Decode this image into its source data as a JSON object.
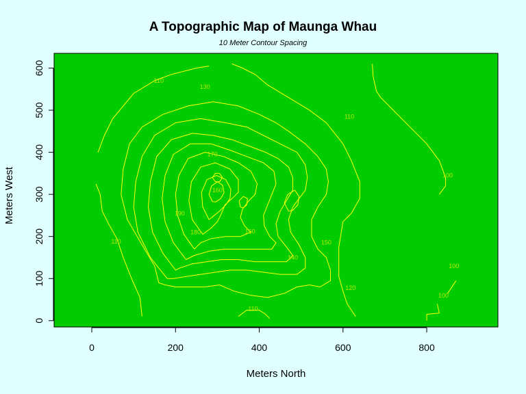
{
  "chart_data": {
    "type": "contour",
    "title": "A Topographic Map of Maunga Whau",
    "subtitle": "10 Meter Contour Spacing",
    "xlabel": "Meters North",
    "ylabel": "Meters West",
    "xlim": [
      -90,
      970
    ],
    "ylim": [
      -15,
      635
    ],
    "x_ticks": [
      0,
      200,
      400,
      600,
      800
    ],
    "y_ticks": [
      0,
      100,
      200,
      300,
      400,
      500,
      600
    ],
    "grid": false,
    "colors": {
      "background": "#e0ffff",
      "plot_fill": "#00cc00",
      "contour_line": "#ffff00",
      "label_color": "#b8e800"
    },
    "contours": [
      {
        "level": 100,
        "points": [
          [
            670,
            610
          ],
          [
            672,
            580
          ],
          [
            680,
            545
          ],
          [
            690,
            530
          ],
          [
            720,
            500
          ],
          [
            760,
            460
          ],
          [
            800,
            420
          ],
          [
            830,
            380
          ],
          [
            845,
            340
          ],
          [
            845,
            320
          ],
          [
            830,
            300
          ]
        ]
      },
      {
        "level": 100,
        "points": [
          [
            850,
            65
          ],
          [
            870,
            95
          ]
        ]
      },
      {
        "level": 100,
        "points": [
          [
            800,
            0
          ],
          [
            800,
            15
          ],
          [
            830,
            18
          ],
          [
            825,
            40
          ]
        ]
      },
      {
        "level": 110,
        "points": [
          [
            15,
            400
          ],
          [
            30,
            440
          ],
          [
            50,
            480
          ],
          [
            100,
            540
          ],
          [
            150,
            570
          ],
          [
            190,
            585
          ],
          [
            250,
            600
          ],
          [
            280,
            605
          ]
        ]
      },
      {
        "level": 110,
        "points": [
          [
            10,
            325
          ],
          [
            20,
            300
          ],
          [
            25,
            260
          ],
          [
            40,
            230
          ],
          [
            60,
            195
          ],
          [
            75,
            150
          ],
          [
            95,
            100
          ],
          [
            115,
            55
          ],
          [
            120,
            10
          ]
        ]
      },
      {
        "level": 110,
        "points": [
          [
            335,
            610
          ],
          [
            360,
            600
          ],
          [
            390,
            585
          ],
          [
            420,
            560
          ],
          [
            470,
            530
          ],
          [
            520,
            500
          ],
          [
            560,
            470
          ],
          [
            600,
            420
          ],
          [
            620,
            380
          ],
          [
            640,
            330
          ],
          [
            640,
            290
          ],
          [
            620,
            255
          ],
          [
            600,
            235
          ],
          [
            590,
            175
          ],
          [
            590,
            105
          ],
          [
            600,
            70
          ],
          [
            610,
            40
          ],
          [
            630,
            10
          ]
        ]
      },
      {
        "level": 110,
        "points": [
          [
            350,
            10
          ],
          [
            370,
            25
          ],
          [
            400,
            25
          ],
          [
            415,
            15
          ],
          [
            425,
            5
          ]
        ]
      },
      {
        "level": 120,
        "points": [
          [
            160,
            90
          ],
          [
            150,
            130
          ],
          [
            120,
            180
          ],
          [
            85,
            240
          ],
          [
            70,
            300
          ],
          [
            75,
            360
          ],
          [
            90,
            420
          ],
          [
            120,
            460
          ],
          [
            170,
            490
          ],
          [
            230,
            510
          ],
          [
            290,
            520
          ],
          [
            350,
            510
          ],
          [
            400,
            490
          ],
          [
            440,
            470
          ],
          [
            470,
            450
          ],
          [
            510,
            420
          ],
          [
            540,
            390
          ],
          [
            560,
            360
          ],
          [
            565,
            330
          ],
          [
            560,
            300
          ],
          [
            540,
            270
          ],
          [
            525,
            240
          ],
          [
            525,
            200
          ],
          [
            540,
            170
          ],
          [
            560,
            150
          ],
          [
            570,
            120
          ],
          [
            570,
            95
          ],
          [
            545,
            80
          ],
          [
            520,
            85
          ],
          [
            490,
            80
          ],
          [
            460,
            65
          ],
          [
            420,
            55
          ],
          [
            380,
            60
          ],
          [
            340,
            70
          ],
          [
            305,
            85
          ],
          [
            270,
            80
          ],
          [
            235,
            80
          ],
          [
            200,
            80
          ],
          [
            175,
            85
          ],
          [
            160,
            90
          ]
        ]
      },
      {
        "level": 130,
        "points": [
          [
            180,
            100
          ],
          [
            140,
            150
          ],
          [
            110,
            210
          ],
          [
            100,
            270
          ],
          [
            105,
            330
          ],
          [
            120,
            390
          ],
          [
            150,
            440
          ],
          [
            200,
            470
          ],
          [
            260,
            480
          ],
          [
            320,
            470
          ],
          [
            370,
            460
          ],
          [
            410,
            440
          ],
          [
            450,
            420
          ],
          [
            490,
            400
          ],
          [
            510,
            370
          ],
          [
            515,
            340
          ],
          [
            510,
            310
          ],
          [
            495,
            290
          ],
          [
            480,
            270
          ],
          [
            470,
            240
          ],
          [
            475,
            210
          ],
          [
            495,
            180
          ],
          [
            510,
            150
          ],
          [
            510,
            125
          ],
          [
            490,
            110
          ],
          [
            450,
            110
          ],
          [
            410,
            115
          ],
          [
            370,
            120
          ],
          [
            330,
            120
          ],
          [
            295,
            115
          ],
          [
            260,
            110
          ],
          [
            225,
            105
          ],
          [
            195,
            100
          ],
          [
            180,
            100
          ]
        ]
      },
      {
        "level": 140,
        "points": [
          [
            200,
            120
          ],
          [
            170,
            160
          ],
          [
            145,
            210
          ],
          [
            135,
            270
          ],
          [
            140,
            330
          ],
          [
            155,
            390
          ],
          [
            190,
            430
          ],
          [
            240,
            445
          ],
          [
            290,
            440
          ],
          [
            335,
            430
          ],
          [
            375,
            415
          ],
          [
            415,
            400
          ],
          [
            445,
            385
          ],
          [
            470,
            365
          ],
          [
            480,
            340
          ],
          [
            480,
            310
          ],
          [
            465,
            285
          ],
          [
            450,
            260
          ],
          [
            440,
            230
          ],
          [
            445,
            200
          ],
          [
            465,
            175
          ],
          [
            480,
            155
          ],
          [
            465,
            140
          ],
          [
            430,
            140
          ],
          [
            390,
            140
          ],
          [
            350,
            145
          ],
          [
            310,
            145
          ],
          [
            275,
            140
          ],
          [
            240,
            135
          ],
          [
            210,
            125
          ],
          [
            200,
            120
          ]
        ]
      },
      {
        "level": 150,
        "points": [
          [
            225,
            145
          ],
          [
            195,
            185
          ],
          [
            175,
            235
          ],
          [
            168,
            290
          ],
          [
            175,
            345
          ],
          [
            195,
            395
          ],
          [
            235,
            420
          ],
          [
            285,
            420
          ],
          [
            330,
            405
          ],
          [
            370,
            390
          ],
          [
            410,
            375
          ],
          [
            435,
            355
          ],
          [
            440,
            325
          ],
          [
            430,
            300
          ],
          [
            420,
            275
          ],
          [
            410,
            250
          ],
          [
            412,
            225
          ],
          [
            425,
            200
          ],
          [
            440,
            185
          ],
          [
            430,
            170
          ],
          [
            395,
            170
          ],
          [
            355,
            170
          ],
          [
            315,
            170
          ],
          [
            280,
            165
          ],
          [
            245,
            155
          ],
          [
            225,
            145
          ]
        ]
      },
      {
        "level": 160,
        "points": [
          [
            245,
            170
          ],
          [
            220,
            205
          ],
          [
            205,
            250
          ],
          [
            200,
            300
          ],
          [
            208,
            345
          ],
          [
            230,
            385
          ],
          [
            270,
            400
          ],
          [
            315,
            390
          ],
          [
            350,
            375
          ],
          [
            380,
            355
          ],
          [
            395,
            325
          ],
          [
            390,
            300
          ],
          [
            375,
            285
          ],
          [
            360,
            265
          ],
          [
            355,
            245
          ],
          [
            365,
            225
          ],
          [
            380,
            210
          ],
          [
            355,
            200
          ],
          [
            320,
            200
          ],
          [
            285,
            195
          ],
          [
            260,
            185
          ],
          [
            245,
            170
          ]
        ]
      },
      {
        "level": 170,
        "points": [
          [
            265,
            205
          ],
          [
            240,
            240
          ],
          [
            232,
            285
          ],
          [
            238,
            330
          ],
          [
            260,
            365
          ],
          [
            295,
            375
          ],
          [
            330,
            360
          ],
          [
            350,
            335
          ],
          [
            350,
            305
          ],
          [
            335,
            290
          ],
          [
            318,
            275
          ],
          [
            310,
            255
          ],
          [
            300,
            235
          ],
          [
            285,
            220
          ],
          [
            265,
            205
          ]
        ]
      },
      {
        "level": 180,
        "points": [
          [
            280,
            240
          ],
          [
            265,
            270
          ],
          [
            262,
            305
          ],
          [
            275,
            335
          ],
          [
            298,
            345
          ],
          [
            320,
            335
          ],
          [
            332,
            312
          ],
          [
            330,
            290
          ],
          [
            320,
            275
          ],
          [
            305,
            260
          ],
          [
            290,
            248
          ],
          [
            280,
            240
          ]
        ]
      },
      {
        "level": 190,
        "points": [
          [
            288,
            283
          ],
          [
            280,
            300
          ],
          [
            286,
            320
          ],
          [
            300,
            330
          ],
          [
            312,
            322
          ],
          [
            316,
            304
          ],
          [
            308,
            290
          ],
          [
            296,
            282
          ],
          [
            288,
            283
          ]
        ]
      },
      {
        "level": 200,
        "points": [
          [
            295,
            330
          ],
          [
            288,
            340
          ],
          [
            295,
            350
          ],
          [
            305,
            350
          ],
          [
            312,
            340
          ],
          [
            305,
            330
          ],
          [
            295,
            330
          ]
        ]
      },
      {
        "level": 180,
        "points": [
          [
            470,
            260
          ],
          [
            460,
            280
          ],
          [
            468,
            300
          ],
          [
            485,
            310
          ],
          [
            495,
            295
          ],
          [
            492,
            275
          ],
          [
            480,
            262
          ],
          [
            470,
            260
          ]
        ]
      },
      {
        "level": 170,
        "points": [
          [
            355,
            270
          ],
          [
            352,
            285
          ],
          [
            362,
            295
          ],
          [
            372,
            290
          ],
          [
            370,
            275
          ],
          [
            362,
            268
          ],
          [
            355,
            270
          ]
        ]
      }
    ],
    "contour_labels": [
      {
        "text": "110",
        "x": 160,
        "y": 570
      },
      {
        "text": "130",
        "x": 270,
        "y": 555
      },
      {
        "text": "110",
        "x": 615,
        "y": 485
      },
      {
        "text": "100",
        "x": 850,
        "y": 345
      },
      {
        "text": "170",
        "x": 288,
        "y": 395
      },
      {
        "text": "160",
        "x": 300,
        "y": 310
      },
      {
        "text": "190",
        "x": 210,
        "y": 255
      },
      {
        "text": "180",
        "x": 248,
        "y": 210
      },
      {
        "text": "160",
        "x": 378,
        "y": 212
      },
      {
        "text": "150",
        "x": 560,
        "y": 186
      },
      {
        "text": "140",
        "x": 480,
        "y": 150
      },
      {
        "text": "120",
        "x": 618,
        "y": 78
      },
      {
        "text": "110",
        "x": 385,
        "y": 28
      },
      {
        "text": "110",
        "x": 58,
        "y": 188
      },
      {
        "text": "100",
        "x": 865,
        "y": 130
      },
      {
        "text": "100",
        "x": 840,
        "y": 60
      }
    ]
  }
}
